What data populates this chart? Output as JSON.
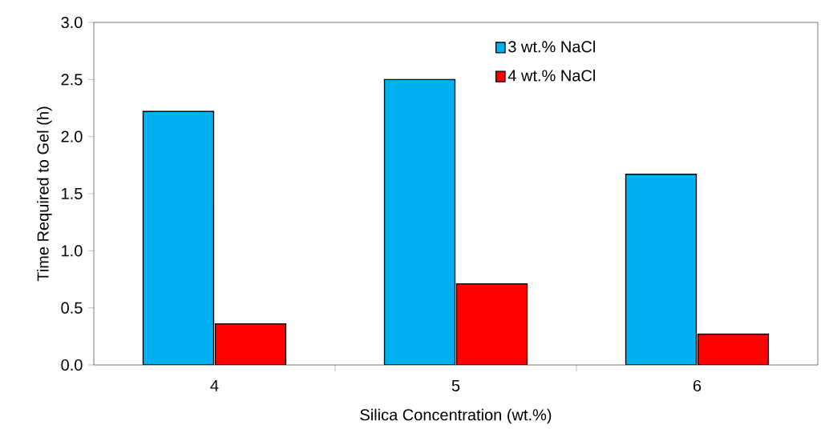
{
  "chart_data": {
    "type": "bar",
    "xlabel": "Silica Concentration (wt.%)",
    "ylabel": "Time Required to Gel (h)",
    "categories": [
      "4",
      "5",
      "6"
    ],
    "series": [
      {
        "name": "3 wt.% NaCl",
        "color": "#00b0f0",
        "values": [
          2.22,
          2.5,
          1.67
        ]
      },
      {
        "name": "4 wt.% NaCl",
        "color": "#ff0000",
        "values": [
          0.36,
          0.71,
          0.27
        ]
      }
    ],
    "ylim": [
      0,
      3
    ],
    "yticks": [
      {
        "value": 0,
        "label": "0.0"
      },
      0.5,
      {
        "value": 1,
        "label": "1.0"
      },
      1.5,
      {
        "value": 2,
        "label": "2.0"
      },
      2.5,
      {
        "value": 3,
        "label": "3.0"
      }
    ],
    "grid": false,
    "legend": "top right"
  }
}
